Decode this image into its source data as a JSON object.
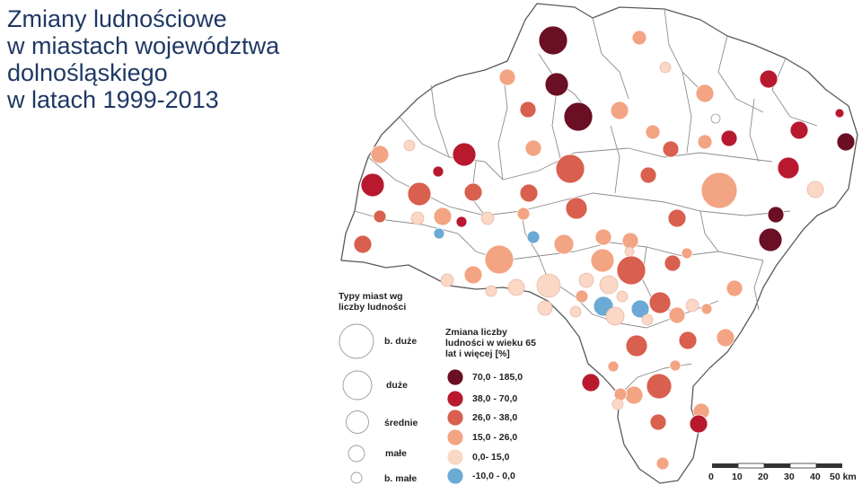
{
  "title": {
    "lines": [
      "Zmiany ludnościowe",
      "w miastach województwa",
      "dolnośląskiego",
      "w latach 1999-2013"
    ]
  },
  "legend_size": {
    "title": "Typy miast wg liczby ludności",
    "items": [
      {
        "label": "b. duże"
      },
      {
        "label": "duże"
      },
      {
        "label": "średnie"
      },
      {
        "label": "małe"
      },
      {
        "label": "b. małe"
      }
    ]
  },
  "legend_change": {
    "title": "Zmiana liczby ludności w wieku 65 lat i więcej [%]",
    "items": [
      {
        "label": "70,0 - 185,0",
        "color": "#6b0f24"
      },
      {
        "label": "38,0 - 70,0",
        "color": "#b8192f"
      },
      {
        "label": "26,0 - 38,0",
        "color": "#d95f4e"
      },
      {
        "label": "15,0 - 26,0",
        "color": "#f3a483"
      },
      {
        "label": "0,0- 15,0",
        "color": "#fbd7c6"
      },
      {
        "label": "-10,0 - 0,0",
        "color": "#6aaad5"
      }
    ]
  },
  "scale": {
    "ticks": [
      "0",
      "10",
      "20",
      "30",
      "40",
      "50 km"
    ]
  },
  "colors": {
    "title": "#1f3864",
    "boundary": "#8c8c8c",
    "outline": "#5a5a5a"
  }
}
